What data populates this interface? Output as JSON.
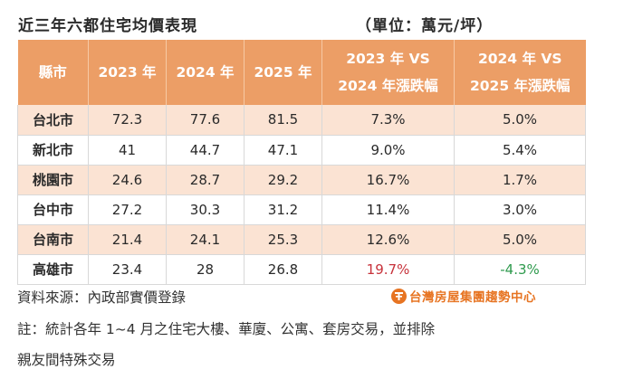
{
  "header": {
    "title": "近三年六都住宅均價表現",
    "unit": "（單位：萬元/坪）"
  },
  "table": {
    "columns": [
      [
        "縣市"
      ],
      [
        "2023 年"
      ],
      [
        "2024 年"
      ],
      [
        "2025 年"
      ],
      [
        "2023 年 VS",
        "2024 年漲跌幅"
      ],
      [
        "2024 年 VS",
        "2025 年漲跌幅"
      ]
    ],
    "rows": [
      {
        "city": "台北市",
        "y2023": "72.3",
        "y2024": "77.6",
        "y2025": "81.5",
        "chg1": "7.3%",
        "chg2": "5.0%"
      },
      {
        "city": "新北市",
        "y2023": "41",
        "y2024": "44.7",
        "y2025": "47.1",
        "chg1": "9.0%",
        "chg2": "5.4%"
      },
      {
        "city": "桃園市",
        "y2023": "24.6",
        "y2024": "28.7",
        "y2025": "29.2",
        "chg1": "16.7%",
        "chg2": "1.7%"
      },
      {
        "city": "台中市",
        "y2023": "27.2",
        "y2024": "30.3",
        "y2025": "31.2",
        "chg1": "11.4%",
        "chg2": "3.0%"
      },
      {
        "city": "台南市",
        "y2023": "21.4",
        "y2024": "24.1",
        "y2025": "25.3",
        "chg1": "12.6%",
        "chg2": "5.0%"
      },
      {
        "city": "高雄市",
        "y2023": "23.4",
        "y2024": "28",
        "y2025": "26.8",
        "chg1": "19.7%",
        "chg2": "-4.3%"
      }
    ],
    "highlight": {
      "max_increase_color": "#c7323b",
      "decrease_color": "#2e9a4d"
    }
  },
  "footer": {
    "source": "資料來源：內政部實價登錄",
    "note_line1": "註：統計各年 1~4 月之住宅大樓、華廈、公寓、套房交易，並排除",
    "note_line2": "親友間特殊交易",
    "brand": "台灣房屋集團趨勢中心",
    "brand_icon": "taiwan-realty-logo-icon",
    "brand_color": "#e77422"
  },
  "colors": {
    "header_bg": "#ec9e66",
    "row_alt_bg": "#fbe3d3"
  }
}
